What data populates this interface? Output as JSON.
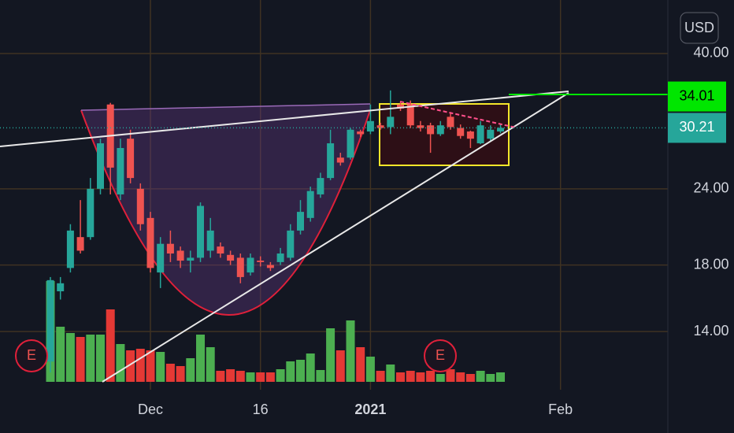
{
  "chart_data": {
    "type": "candlestick",
    "categories": [
      null,
      null,
      null,
      null,
      null,
      null,
      null,
      null,
      null,
      null,
      "Dec",
      null,
      null,
      null,
      null,
      null,
      null,
      null,
      null,
      null,
      null,
      "16",
      null,
      null,
      null,
      null,
      null,
      null,
      null,
      null,
      null,
      null,
      "2021",
      null,
      null,
      null,
      null,
      null,
      null,
      null,
      null,
      null,
      null,
      null,
      null,
      null,
      null,
      null,
      null,
      null,
      null,
      "Feb"
    ],
    "opens": [
      12.5,
      16.3,
      17.8,
      20,
      20,
      24,
      33,
      23.5,
      29,
      24,
      21.5,
      17.5,
      19.5,
      19,
      18.3,
      18.5,
      19,
      19.3,
      18.7,
      18.5,
      17.5,
      18.3,
      18,
      18.2,
      18.5,
      20.5,
      21.5,
      23.5,
      25,
      27,
      27,
      29.8,
      29.8,
      30.5,
      30.3,
      33,
      33,
      30.5,
      30.5,
      29.5,
      31.5,
      30.2,
      29.8,
      28.5,
      29,
      29.8,
      null,
      null,
      null,
      null,
      null,
      null
    ],
    "highs": [
      17.2,
      17.2,
      21,
      23,
      25,
      29,
      33.2,
      29,
      30,
      24.5,
      22,
      20,
      20.5,
      19.3,
      19,
      22.8,
      21.5,
      19.6,
      19,
      18.8,
      18.8,
      18.6,
      18.2,
      19.2,
      21,
      23,
      24.2,
      25.5,
      30,
      27.5,
      30.2,
      30,
      33,
      30.8,
      34.8,
      33.3,
      33.5,
      31,
      30.8,
      31,
      32,
      30.6,
      29.9,
      31,
      30.5,
      30.6,
      null,
      null,
      null,
      null,
      null,
      null
    ],
    "lows": [
      12,
      15.8,
      17.5,
      18.8,
      19.8,
      23.5,
      23.5,
      23,
      24.5,
      20.5,
      17.5,
      16.5,
      18.2,
      17.8,
      17.5,
      18.2,
      18.5,
      18.5,
      18,
      16.8,
      17.3,
      17.9,
      17.6,
      18,
      18.3,
      20.2,
      21.2,
      23.2,
      24.8,
      26.2,
      26.8,
      29.2,
      29.5,
      30,
      29.5,
      32.2,
      30.2,
      29.8,
      27.5,
      29.3,
      30,
      29,
      28,
      28.4,
      28.8,
      29.6,
      null,
      null,
      null,
      null,
      null,
      null
    ],
    "closes": [
      17,
      16.8,
      20.5,
      19,
      24,
      28.5,
      26,
      28,
      25,
      21,
      17.8,
      19.5,
      18.8,
      18.3,
      18.5,
      22.5,
      20.5,
      18.8,
      18.3,
      17.2,
      18.5,
      18.2,
      17.8,
      18.8,
      20.5,
      22,
      23.8,
      25,
      28.5,
      26.5,
      30,
      29.5,
      31,
      30.2,
      31.5,
      32.5,
      30.5,
      30.2,
      29.5,
      30.5,
      30.3,
      29.3,
      29,
      30.5,
      30,
      30.21,
      null,
      null,
      null,
      null,
      null,
      null
    ],
    "volumes": [
      128,
      70,
      62,
      57,
      60,
      60,
      92,
      48,
      40,
      42,
      40,
      38,
      23,
      20,
      30,
      60,
      44,
      14,
      16,
      14,
      12,
      12,
      12,
      16,
      26,
      28,
      36,
      15,
      68,
      40,
      78,
      44,
      32,
      14,
      22,
      12,
      14,
      12,
      14,
      10,
      16,
      12,
      10,
      14,
      10,
      12,
      null,
      null,
      null,
      null,
      null,
      null
    ],
    "ylim": [
      11.58,
      48.96
    ],
    "yticks": [
      {
        "value": 14,
        "label": "14.00"
      },
      {
        "value": 18,
        "label": "18.00"
      },
      {
        "value": 24,
        "label": "24.00"
      },
      {
        "value": 40,
        "label": "40.00"
      }
    ],
    "log_scale": true,
    "grid": true,
    "up_color": "#26a69a",
    "down_color": "#ef5350",
    "volume_up_color": "#4caf50",
    "volume_down_color": "#e53935",
    "currency": "USD",
    "price_labels": [
      {
        "value": 34.01,
        "label": "34.01",
        "color": "#00e600"
      },
      {
        "value": 30.21,
        "label": "30.21",
        "color": "#26a69a"
      }
    ],
    "earnings": [
      "E",
      "E"
    ]
  }
}
